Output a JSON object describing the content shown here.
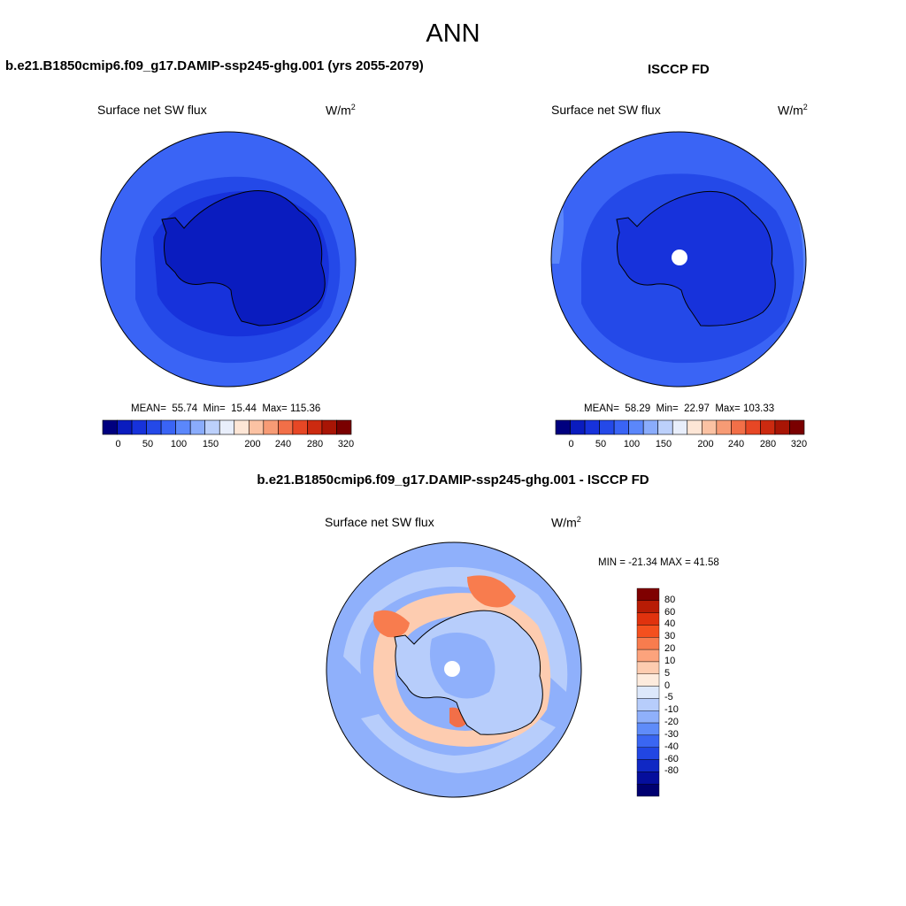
{
  "page": {
    "title": "ANN"
  },
  "panels": [
    {
      "case_title": "b.e21.B1850cmip6.f09_g17.DAMIP-ssp245-ghg.001 (yrs 2055-2079)",
      "variable": "Surface net SW flux",
      "units_base": "W/m",
      "units_exp": "2",
      "stats": {
        "mean_label": "MEAN=",
        "mean": "55.74",
        "min_label": "Min=",
        "min": "15.44",
        "max_label": "Max=",
        "max": "115.36"
      },
      "colorbar": {
        "colors": [
          "#00007f",
          "#0a1cbf",
          "#1732db",
          "#2449e8",
          "#3a64f5",
          "#5b87fb",
          "#8aacfc",
          "#bcd0fb",
          "#e8eefb",
          "#fde6d6",
          "#fbc2a3",
          "#f79b75",
          "#f26f48",
          "#e74725",
          "#cc2a10",
          "#a81505",
          "#7a0000"
        ],
        "labels": [
          "0",
          "50",
          "100",
          "150",
          "200",
          "240",
          "280",
          "320"
        ]
      }
    },
    {
      "case_title": "ISCCP FD",
      "variable": "Surface net SW flux",
      "units_base": "W/m",
      "units_exp": "2",
      "stats": {
        "mean_label": "MEAN=",
        "mean": "58.29",
        "min_label": "Min=",
        "min": "22.97",
        "max_label": "Max=",
        "max": "103.33"
      },
      "colorbar": {
        "colors": [
          "#00007f",
          "#0a1cbf",
          "#1732db",
          "#2449e8",
          "#3a64f5",
          "#5b87fb",
          "#8aacfc",
          "#bcd0fb",
          "#e8eefb",
          "#fde6d6",
          "#fbc2a3",
          "#f79b75",
          "#f26f48",
          "#e74725",
          "#cc2a10",
          "#a81505",
          "#7a0000"
        ],
        "labels": [
          "0",
          "50",
          "100",
          "150",
          "200",
          "240",
          "280",
          "320"
        ]
      }
    }
  ],
  "diff_panel": {
    "case_title": "b.e21.B1850cmip6.f09_g17.DAMIP-ssp245-ghg.001 - ISCCP FD",
    "variable": "Surface net SW flux",
    "units_base": "W/m",
    "units_exp": "2",
    "minmax": "MIN = -21.34 MAX =  41.58",
    "colorbar": {
      "colors": [
        "#7f0000",
        "#b81c05",
        "#e0320e",
        "#f4501e",
        "#f87c4e",
        "#fca37c",
        "#fdccb0",
        "#fdebdd",
        "#dde8fb",
        "#b7cdfb",
        "#8fb0fb",
        "#5f8cf9",
        "#3a66f2",
        "#2146e3",
        "#1028c4",
        "#050e9c",
        "#000070"
      ],
      "labels": [
        "80",
        "60",
        "40",
        "30",
        "20",
        "10",
        "5",
        "0",
        "-5",
        "-10",
        "-20",
        "-30",
        "-40",
        "-60",
        "-80"
      ]
    }
  },
  "colors": {
    "ocean_outer": "#3a64f5",
    "ocean_mid": "#2449e8",
    "ice_shelf": "#1732db",
    "antarctica_model": "#0a1cbf",
    "antarctica_obs": "#1732db",
    "diff_base": "#8fb0fb",
    "diff_light": "#b7cdfb",
    "diff_pos1": "#fdccb0",
    "diff_pos2": "#f87c4e",
    "coast": "#000000"
  }
}
